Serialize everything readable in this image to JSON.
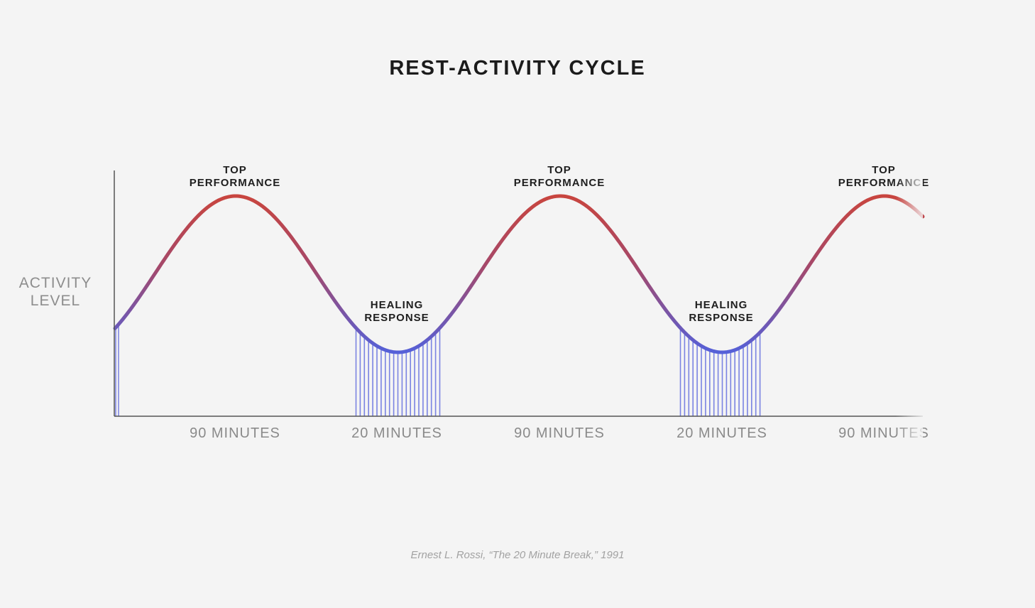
{
  "title": "REST-ACTIVITY CYCLE",
  "y_axis_label": [
    "ACTIVITY",
    "LEVEL"
  ],
  "peak_label": [
    "TOP",
    "PERFORMANCE"
  ],
  "trough_label": [
    "HEALING",
    "RESPONSE"
  ],
  "segments": [
    {
      "label": "90 MINUTES",
      "phase": "activity"
    },
    {
      "label": "20 MINUTES",
      "phase": "rest"
    },
    {
      "label": "90 MINUTES",
      "phase": "activity"
    },
    {
      "label": "20 MINUTES",
      "phase": "rest"
    },
    {
      "label": "90 MINUTES",
      "phase": "activity"
    }
  ],
  "citation": "Ernest L. Rossi, “The 20 Minute Break,” 1991",
  "colors": {
    "curve_high": "#c8453f",
    "curve_low": "#5560d8",
    "hatch": "#5b66dd",
    "axis": "#555555",
    "text_dark": "#1b1b1b",
    "text_gray": "#8a8a8a"
  }
}
